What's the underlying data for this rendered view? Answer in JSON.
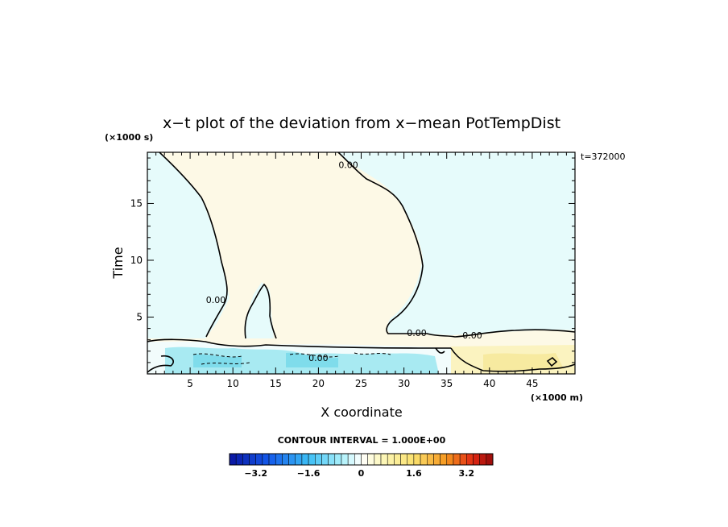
{
  "chart_data": {
    "type": "heatmap",
    "title": "x−t plot of the deviation from x−mean PotTempDist",
    "time_stamp": "t=372000",
    "xlabel": "X coordinate",
    "ylabel": "Time",
    "x_unit": "(×1000 m)",
    "y_unit": "(×1000 s)",
    "xlim": [
      0,
      50
    ],
    "ylim": [
      0,
      19.5
    ],
    "x_ticks": [
      5,
      10,
      15,
      20,
      25,
      30,
      35,
      40,
      45
    ],
    "y_ticks": [
      5,
      10,
      15
    ],
    "contour_interval_text": "CONTOUR INTERVAL = 1.000E+00",
    "contour_labels": [
      {
        "text": "0.00",
        "x": 23.5,
        "y": 18.2
      },
      {
        "text": "0.00",
        "x": 8.0,
        "y": 6.3
      },
      {
        "text": "0.00",
        "x": 31.5,
        "y": 3.4
      },
      {
        "text": "0.00",
        "x": 38.0,
        "y": 3.2
      },
      {
        "text": "0.00",
        "x": 20.0,
        "y": 1.2
      }
    ],
    "regions": [
      {
        "value": 0.2,
        "color": "#fdf9e6",
        "desc": "positive deviation upper region"
      },
      {
        "value": -0.2,
        "color": "#e6fbfb",
        "desc": "negative deviation region"
      },
      {
        "value": -1.0,
        "color": "#a8eaf2",
        "desc": "strong negative band"
      },
      {
        "value": 0.8,
        "color": "#fbf3c0",
        "desc": "positive band right"
      }
    ],
    "colorbar": {
      "min": -4.0,
      "max": 4.0,
      "step": 0.2,
      "tick_values": [
        -3.2,
        -1.6,
        0,
        1.6,
        3.2
      ],
      "tick_labels": [
        "−3.2",
        "−1.6",
        "0",
        "1.6",
        "3.2"
      ]
    }
  }
}
